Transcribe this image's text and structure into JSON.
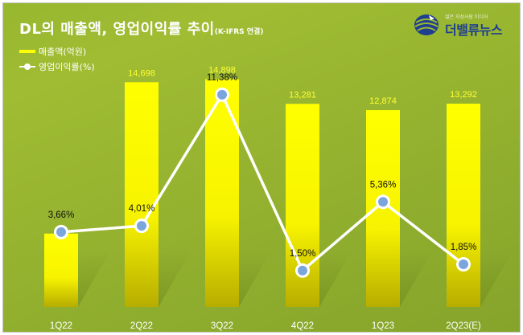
{
  "title": {
    "main": "DL의 매출액, 영업이익률 추이",
    "note": "(K-IFRS 연결)"
  },
  "legend": {
    "bar_label": "매출액(억원)",
    "line_label": "영업이익률(%)"
  },
  "logo": {
    "tagline": "젊은 지성사람 미디어",
    "name": "더밸류뉴스",
    "icon": "globe-icon"
  },
  "colors": {
    "background": "#9ab632",
    "bar": "#ffff00",
    "line": "#ffffff",
    "marker": "#7aa6dd",
    "value_label": "#ffff33"
  },
  "chart_data": {
    "type": "bar",
    "categories": [
      "1Q22",
      "2Q22",
      "3Q22",
      "4Q22",
      "1Q23",
      "2Q23(E)"
    ],
    "series": [
      {
        "name": "매출액(억원)",
        "type": "bar",
        "values": [
          4795,
          14698,
          14898,
          13281,
          12874,
          13292
        ],
        "labels": [
          "",
          "14,698",
          "14,898",
          "13,281",
          "12,874",
          "13,292"
        ]
      },
      {
        "name": "영업이익률(%)",
        "type": "line",
        "values": [
          3.66,
          4.01,
          11.38,
          1.5,
          5.36,
          1.85
        ],
        "labels": [
          "3,66%",
          "4,01%",
          "11,38%",
          "1,50%",
          "5,36%",
          "1,85%"
        ]
      }
    ],
    "ylim_bar": [
      0,
      17500
    ],
    "ylim_line": [
      0,
      13
    ],
    "grid": false,
    "legend_position": "top-left"
  }
}
